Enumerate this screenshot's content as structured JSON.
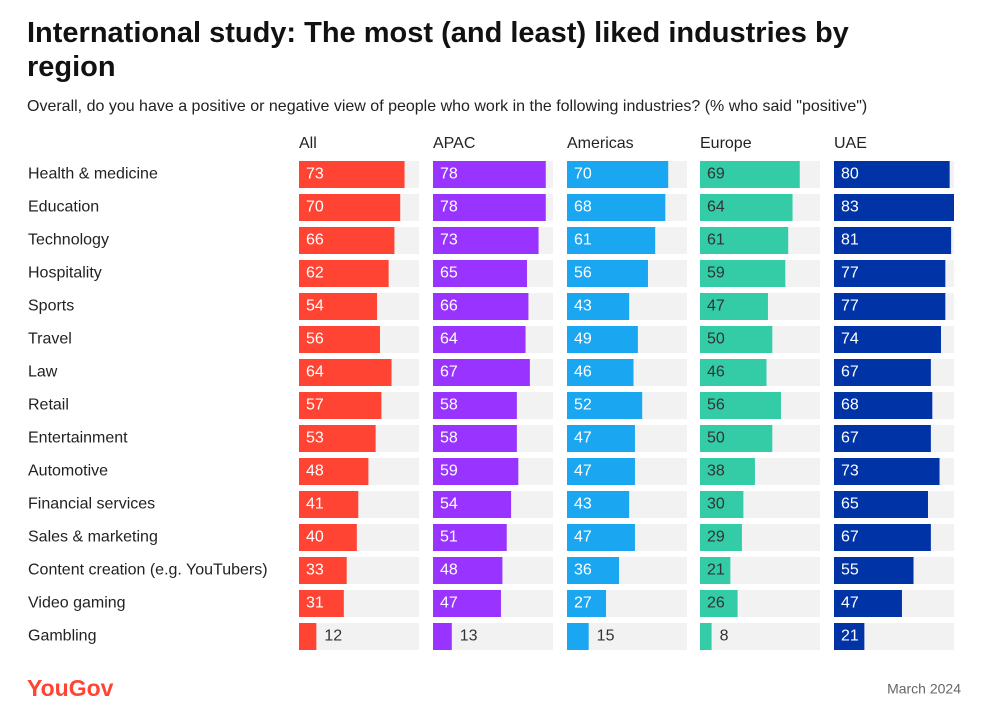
{
  "chart_data": {
    "type": "bar",
    "title": "International study: The most (and least) liked industries by region",
    "subtitle": "Overall, do you have a positive or negative view of people who work in the following industries? (% who said \"positive\")",
    "categories": [
      "Health & medicine",
      "Education",
      "Technology",
      "Hospitality",
      "Sports",
      "Travel",
      "Law",
      "Retail",
      "Entertainment",
      "Automotive",
      "Financial services",
      "Sales & marketing",
      "Content creation (e.g. YouTubers)",
      "Video gaming",
      "Gambling"
    ],
    "series": [
      {
        "name": "All",
        "color": "#ff4433",
        "label_color": "#ffffff",
        "values": [
          73,
          70,
          66,
          62,
          54,
          56,
          64,
          57,
          53,
          48,
          41,
          40,
          33,
          31,
          12
        ]
      },
      {
        "name": "APAC",
        "color": "#9933ff",
        "label_color": "#ffffff",
        "values": [
          78,
          78,
          73,
          65,
          66,
          64,
          67,
          58,
          58,
          59,
          54,
          51,
          48,
          47,
          13
        ]
      },
      {
        "name": "Americas",
        "color": "#1aa6f0",
        "label_color": "#ffffff",
        "values": [
          70,
          68,
          61,
          56,
          43,
          49,
          46,
          52,
          47,
          47,
          43,
          47,
          36,
          27,
          15
        ]
      },
      {
        "name": "Europe",
        "color": "#33cca6",
        "label_color": "#333333",
        "values": [
          69,
          64,
          61,
          59,
          47,
          50,
          46,
          56,
          50,
          38,
          30,
          29,
          21,
          26,
          8
        ]
      },
      {
        "name": "UAE",
        "color": "#0033a6",
        "label_color": "#ffffff",
        "values": [
          80,
          83,
          81,
          77,
          77,
          74,
          67,
          68,
          67,
          73,
          65,
          67,
          55,
          47,
          21
        ]
      }
    ],
    "xlim": [
      0,
      83
    ],
    "source": "YouGov",
    "date": "March 2024"
  }
}
